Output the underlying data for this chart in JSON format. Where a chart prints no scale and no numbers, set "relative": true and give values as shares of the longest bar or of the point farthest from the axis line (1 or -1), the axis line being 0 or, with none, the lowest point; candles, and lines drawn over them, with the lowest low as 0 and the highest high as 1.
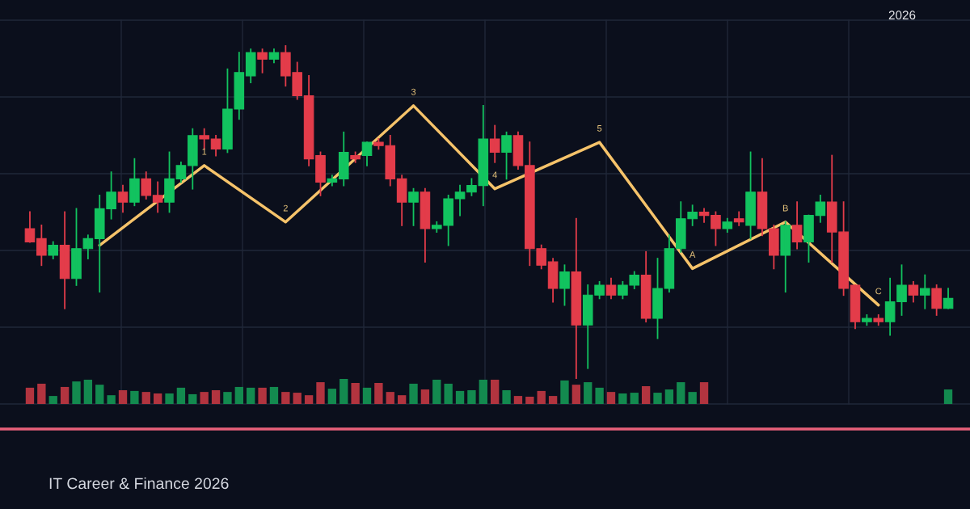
{
  "chart_data": [
    {
      "type": "candlestick",
      "relative": true,
      "grid": true,
      "categories": [
        null,
        null,
        null,
        null,
        null,
        null,
        null,
        null,
        null,
        null,
        null,
        null,
        null,
        null,
        null,
        null,
        null,
        null,
        null,
        null,
        null,
        null,
        null,
        null,
        null,
        null,
        null,
        null,
        null,
        null,
        null,
        null,
        null,
        null,
        null,
        null,
        null,
        null,
        null,
        null,
        null,
        null,
        null,
        null,
        null,
        null,
        null,
        null,
        null,
        null,
        null,
        null,
        null,
        null,
        null,
        null,
        null,
        null,
        null,
        null,
        null,
        null,
        null,
        null,
        null,
        null,
        null,
        null,
        null,
        null,
        null,
        null,
        null,
        null,
        null,
        null,
        null,
        null,
        null,
        null
      ],
      "ohlc": [
        [
          0.45,
          0.5,
          0.41,
          0.41
        ],
        [
          0.42,
          0.46,
          0.34,
          0.37
        ],
        [
          0.37,
          0.41,
          0.36,
          0.4
        ],
        [
          0.4,
          0.5,
          0.21,
          0.3
        ],
        [
          0.3,
          0.51,
          0.28,
          0.39
        ],
        [
          0.39,
          0.43,
          0.36,
          0.42
        ],
        [
          0.42,
          0.55,
          0.26,
          0.51
        ],
        [
          0.51,
          0.62,
          0.48,
          0.56
        ],
        [
          0.56,
          0.58,
          0.5,
          0.53
        ],
        [
          0.53,
          0.66,
          0.52,
          0.6
        ],
        [
          0.6,
          0.62,
          0.54,
          0.55
        ],
        [
          0.55,
          0.59,
          0.5,
          0.53
        ],
        [
          0.53,
          0.68,
          0.5,
          0.6
        ],
        [
          0.6,
          0.65,
          0.59,
          0.64
        ],
        [
          0.64,
          0.75,
          0.57,
          0.73
        ],
        [
          0.73,
          0.75,
          0.69,
          0.72
        ],
        [
          0.72,
          0.73,
          0.67,
          0.69
        ],
        [
          0.69,
          0.93,
          0.68,
          0.81
        ],
        [
          0.81,
          0.98,
          0.78,
          0.92
        ],
        [
          0.91,
          0.99,
          0.89,
          0.98
        ],
        [
          0.98,
          0.99,
          0.92,
          0.96
        ],
        [
          0.96,
          0.99,
          0.95,
          0.98
        ],
        [
          0.98,
          1.0,
          0.88,
          0.91
        ],
        [
          0.92,
          0.95,
          0.84,
          0.85
        ],
        [
          0.85,
          0.91,
          0.64,
          0.66
        ],
        [
          0.67,
          0.68,
          0.55,
          0.59
        ],
        [
          0.59,
          0.61,
          0.58,
          0.6
        ],
        [
          0.6,
          0.74,
          0.58,
          0.68
        ],
        [
          0.67,
          0.68,
          0.65,
          0.66
        ],
        [
          0.67,
          0.71,
          0.64,
          0.71
        ],
        [
          0.71,
          0.72,
          0.69,
          0.7
        ],
        [
          0.7,
          0.73,
          0.58,
          0.6
        ],
        [
          0.6,
          0.61,
          0.46,
          0.53
        ],
        [
          0.53,
          0.57,
          0.46,
          0.56
        ],
        [
          0.56,
          0.57,
          0.35,
          0.45
        ],
        [
          0.45,
          0.47,
          0.44,
          0.46
        ],
        [
          0.46,
          0.55,
          0.4,
          0.54
        ],
        [
          0.54,
          0.58,
          0.49,
          0.56
        ],
        [
          0.56,
          0.6,
          0.55,
          0.58
        ],
        [
          0.58,
          0.82,
          0.52,
          0.72
        ],
        [
          0.72,
          0.76,
          0.65,
          0.68
        ],
        [
          0.68,
          0.74,
          0.6,
          0.73
        ],
        [
          0.73,
          0.74,
          0.63,
          0.64
        ],
        [
          0.64,
          0.71,
          0.34,
          0.39
        ],
        [
          0.39,
          0.4,
          0.33,
          0.34
        ],
        [
          0.35,
          0.36,
          0.23,
          0.27
        ],
        [
          0.27,
          0.34,
          0.22,
          0.32
        ],
        [
          0.32,
          0.48,
          0.0,
          0.16
        ],
        [
          0.16,
          0.28,
          0.03,
          0.25
        ],
        [
          0.25,
          0.29,
          0.24,
          0.28
        ],
        [
          0.28,
          0.3,
          0.24,
          0.25
        ],
        [
          0.25,
          0.29,
          0.24,
          0.28
        ],
        [
          0.28,
          0.32,
          0.27,
          0.31
        ],
        [
          0.31,
          0.38,
          0.17,
          0.18
        ],
        [
          0.18,
          0.36,
          0.12,
          0.27
        ],
        [
          0.27,
          0.43,
          0.26,
          0.39
        ],
        [
          0.39,
          0.53,
          0.38,
          0.48
        ],
        [
          0.48,
          0.52,
          0.46,
          0.5
        ],
        [
          0.5,
          0.51,
          0.47,
          0.49
        ],
        [
          0.49,
          0.5,
          0.4,
          0.45
        ],
        [
          0.45,
          0.48,
          0.44,
          0.47
        ],
        [
          0.48,
          0.5,
          0.46,
          0.47
        ],
        [
          0.46,
          0.68,
          0.42,
          0.56
        ],
        [
          0.56,
          0.66,
          0.43,
          0.45
        ],
        [
          0.45,
          0.46,
          0.33,
          0.37
        ],
        [
          0.37,
          0.47,
          0.26,
          0.46
        ],
        [
          0.46,
          0.53,
          0.39,
          0.41
        ],
        [
          0.41,
          0.49,
          0.35,
          0.49
        ],
        [
          0.49,
          0.55,
          0.47,
          0.53
        ],
        [
          0.53,
          0.67,
          0.35,
          0.44
        ],
        [
          0.44,
          0.53,
          0.25,
          0.27
        ],
        [
          0.28,
          0.28,
          0.15,
          0.17
        ],
        [
          0.17,
          0.19,
          0.16,
          0.18
        ],
        [
          0.18,
          0.19,
          0.16,
          0.17
        ],
        [
          0.17,
          0.3,
          0.13,
          0.23
        ],
        [
          0.23,
          0.34,
          0.19,
          0.28
        ],
        [
          0.28,
          0.29,
          0.23,
          0.25
        ],
        [
          0.25,
          0.31,
          0.21,
          0.27
        ],
        [
          0.27,
          0.28,
          0.19,
          0.21
        ],
        [
          0.21,
          0.27,
          0.21,
          0.24
        ]
      ],
      "colors": [
        "#e33c4a",
        "#e33c4a",
        "#12c35f",
        "#e33c4a",
        "#12c35f",
        "#12c35f",
        "#12c35f",
        "#12c35f",
        "#e33c4a",
        "#12c35f",
        "#e33c4a",
        "#e33c4a",
        "#12c35f",
        "#12c35f",
        "#12c35f",
        "#e33c4a",
        "#e33c4a",
        "#12c35f",
        "#12c35f",
        "#12c35f",
        "#e33c4a",
        "#12c35f",
        "#e33c4a",
        "#e33c4a",
        "#e33c4a",
        "#e33c4a",
        "#12c35f",
        "#12c35f",
        "#e33c4a",
        "#12c35f",
        "#e33c4a",
        "#e33c4a",
        "#e33c4a",
        "#12c35f",
        "#e33c4a",
        "#12c35f",
        "#12c35f",
        "#12c35f",
        "#12c35f",
        "#12c35f",
        "#e33c4a",
        "#12c35f",
        "#e33c4a",
        "#e33c4a",
        "#e33c4a",
        "#e33c4a",
        "#12c35f",
        "#e33c4a",
        "#12c35f",
        "#12c35f",
        "#e33c4a",
        "#12c35f",
        "#12c35f",
        "#e33c4a",
        "#12c35f",
        "#12c35f",
        "#12c35f",
        "#12c35f",
        "#e33c4a",
        "#e33c4a",
        "#12c35f",
        "#e33c4a",
        "#12c35f",
        "#e33c4a",
        "#e33c4a",
        "#12c35f",
        "#e33c4a",
        "#12c35f",
        "#12c35f",
        "#e33c4a",
        "#e33c4a",
        "#e33c4a",
        "#12c35f",
        "#e33c4a",
        "#12c35f",
        "#12c35f",
        "#e33c4a",
        "#12c35f",
        "#e33c4a",
        "#12c35f"
      ],
      "series": [
        {
          "type": "line",
          "color": "#f6c36a",
          "values": [
            null,
            null,
            null,
            null,
            null,
            null,
            0.4,
            null,
            null,
            null,
            null,
            null,
            null,
            null,
            null,
            0.64,
            null,
            null,
            null,
            null,
            null,
            null,
            0.47,
            null,
            null,
            null,
            null,
            null,
            null,
            null,
            null,
            null,
            null,
            0.82,
            null,
            null,
            null,
            null,
            null,
            null,
            0.57,
            null,
            null,
            null,
            null,
            null,
            null,
            null,
            null,
            0.71,
            null,
            null,
            null,
            null,
            null,
            null,
            null,
            0.33,
            null,
            null,
            null,
            null,
            null,
            null,
            null,
            0.47,
            null,
            null,
            null,
            null,
            null,
            null,
            null,
            0.22,
            null,
            null,
            null,
            null,
            null,
            null
          ]
        }
      ],
      "annotations": [
        {
          "text": "1",
          "y": 0.64
        },
        {
          "text": "2",
          "y": 0.47
        },
        {
          "text": "3",
          "y": 0.82
        },
        {
          "text": "4",
          "y": 0.57
        },
        {
          "text": "5",
          "y": 0.71
        },
        {
          "text": "A",
          "y": 0.33
        },
        {
          "text": "B",
          "y": 0.47
        },
        {
          "text": "C",
          "y": 0.22
        },
        "2026",
        "IT Career & Finance 2026"
      ]
    },
    {
      "type": "bar",
      "relative": true,
      "categories": [
        null,
        null,
        null,
        null,
        null,
        null,
        null,
        null,
        null,
        null,
        null,
        null,
        null,
        null,
        null,
        null,
        null,
        null,
        null,
        null,
        null,
        null,
        null,
        null,
        null,
        null,
        null,
        null,
        null,
        null,
        null,
        null,
        null,
        null,
        null,
        null,
        null,
        null,
        null,
        null,
        null,
        null,
        null,
        null,
        null,
        null,
        null,
        null,
        null,
        null,
        null,
        null,
        null,
        null,
        null,
        null,
        null,
        null,
        null,
        null,
        null,
        null,
        null,
        null,
        null,
        null,
        null,
        null,
        null,
        null,
        null,
        null,
        null,
        null,
        null,
        null,
        null,
        null,
        null,
        null
      ],
      "values": [
        0.65,
        0.81,
        0.32,
        0.68,
        0.9,
        0.97,
        0.77,
        0.35,
        0.55,
        0.52,
        0.48,
        0.42,
        0.42,
        0.65,
        0.39,
        0.48,
        0.55,
        0.48,
        0.68,
        0.65,
        0.65,
        0.68,
        0.48,
        0.45,
        0.35,
        0.87,
        0.61,
        1.0,
        0.84,
        0.65,
        0.84,
        0.48,
        0.35,
        0.81,
        0.58,
        0.97,
        0.81,
        0.52,
        0.55,
        0.97,
        0.97,
        0.55,
        0.32,
        0.29,
        0.52,
        0.32,
        0.94,
        0.77,
        0.87,
        0.65,
        0.48,
        0.42,
        0.45,
        0.71,
        0.45,
        0.58,
        0.87,
        0.48,
        0.87,
        null,
        null,
        null,
        null,
        null,
        null,
        null,
        null,
        null,
        null,
        null,
        null,
        null,
        null,
        null,
        null,
        null,
        null,
        null,
        null,
        0.58
      ],
      "colors": [
        "#b2343f",
        "#b2343f",
        "#138a4f",
        "#b2343f",
        "#138a4f",
        "#138a4f",
        "#138a4f",
        "#138a4f",
        "#b2343f",
        "#138a4f",
        "#b2343f",
        "#b2343f",
        "#138a4f",
        "#138a4f",
        "#138a4f",
        "#b2343f",
        "#b2343f",
        "#138a4f",
        "#138a4f",
        "#138a4f",
        "#b2343f",
        "#138a4f",
        "#b2343f",
        "#b2343f",
        "#b2343f",
        "#b2343f",
        "#138a4f",
        "#138a4f",
        "#b2343f",
        "#138a4f",
        "#b2343f",
        "#b2343f",
        "#b2343f",
        "#138a4f",
        "#b2343f",
        "#138a4f",
        "#138a4f",
        "#138a4f",
        "#138a4f",
        "#138a4f",
        "#b2343f",
        "#138a4f",
        "#b2343f",
        "#b2343f",
        "#b2343f",
        "#b2343f",
        "#138a4f",
        "#b2343f",
        "#138a4f",
        "#138a4f",
        "#b2343f",
        "#138a4f",
        "#138a4f",
        "#b2343f",
        "#138a4f",
        "#138a4f",
        "#138a4f",
        "#138a4f",
        "#b2343f",
        "#b2343f",
        "#138a4f",
        "#b2343f",
        "#138a4f",
        "#b2343f",
        "#b2343f",
        "#138a4f",
        "#b2343f",
        "#138a4f",
        "#138a4f",
        "#b2343f",
        "#b2343f",
        "#b2343f",
        "#138a4f",
        "#b2343f",
        "#138a4f",
        "#138a4f",
        "#b2343f",
        "#138a4f",
        "#b2343f",
        "#138a4f"
      ]
    }
  ]
}
